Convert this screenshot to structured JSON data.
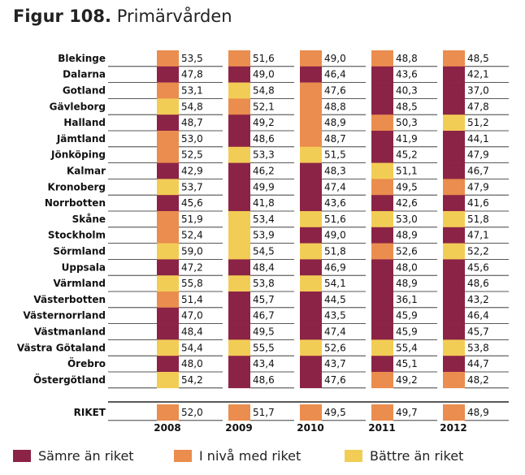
{
  "title": {
    "prefix": "Figur 108.",
    "text": "Primärvården"
  },
  "chart_data": {
    "type": "table",
    "title": "Figur 108. Primärvården",
    "years": [
      "2008",
      "2009",
      "2010",
      "2011",
      "2012"
    ],
    "category_labels": {
      "S": "Sämre än riket",
      "N": "I nivå med riket",
      "B": "Bättre än riket"
    },
    "colors": {
      "S": "#8b2346",
      "N": "#ea8d4e",
      "B": "#f2cd56"
    },
    "rows": [
      {
        "name": "Blekinge",
        "values": [
          "53,5",
          "51,6",
          "49,0",
          "48,8",
          "48,5"
        ],
        "status": [
          "N",
          "N",
          "N",
          "N",
          "N"
        ]
      },
      {
        "name": "Dalarna",
        "values": [
          "47,8",
          "49,0",
          "46,4",
          "43,6",
          "42,1"
        ],
        "status": [
          "S",
          "S",
          "S",
          "S",
          "S"
        ]
      },
      {
        "name": "Gotland",
        "values": [
          "53,1",
          "54,8",
          "47,6",
          "40,3",
          "37,0"
        ],
        "status": [
          "N",
          "B",
          "N",
          "S",
          "S"
        ]
      },
      {
        "name": "Gävleborg",
        "values": [
          "54,8",
          "52,1",
          "48,8",
          "48,5",
          "47,8"
        ],
        "status": [
          "B",
          "N",
          "N",
          "S",
          "S"
        ]
      },
      {
        "name": "Halland",
        "values": [
          "48,7",
          "49,2",
          "48,9",
          "50,3",
          "51,2"
        ],
        "status": [
          "S",
          "S",
          "N",
          "N",
          "B"
        ]
      },
      {
        "name": "Jämtland",
        "values": [
          "53,0",
          "48,6",
          "48,7",
          "41,9",
          "44,1"
        ],
        "status": [
          "N",
          "S",
          "N",
          "S",
          "S"
        ]
      },
      {
        "name": "Jönköping",
        "values": [
          "52,5",
          "53,3",
          "51,5",
          "45,2",
          "47,9"
        ],
        "status": [
          "N",
          "B",
          "B",
          "S",
          "S"
        ]
      },
      {
        "name": "Kalmar",
        "values": [
          "42,9",
          "46,2",
          "48,3",
          "51,1",
          "46,7"
        ],
        "status": [
          "S",
          "S",
          "S",
          "B",
          "S"
        ]
      },
      {
        "name": "Kronoberg",
        "values": [
          "53,7",
          "49,9",
          "47,4",
          "49,5",
          "47,9"
        ],
        "status": [
          "B",
          "S",
          "S",
          "N",
          "N"
        ]
      },
      {
        "name": "Norrbotten",
        "values": [
          "45,6",
          "41,8",
          "43,6",
          "42,6",
          "41,6"
        ],
        "status": [
          "S",
          "S",
          "S",
          "S",
          "S"
        ]
      },
      {
        "name": "Skåne",
        "values": [
          "51,9",
          "53,4",
          "51,6",
          "53,0",
          "51,8"
        ],
        "status": [
          "N",
          "B",
          "B",
          "B",
          "B"
        ]
      },
      {
        "name": "Stockholm",
        "values": [
          "52,4",
          "53,9",
          "49,0",
          "48,9",
          "47,1"
        ],
        "status": [
          "N",
          "B",
          "S",
          "S",
          "S"
        ]
      },
      {
        "name": "Sörmland",
        "values": [
          "59,0",
          "54,5",
          "51,8",
          "52,6",
          "52,2"
        ],
        "status": [
          "B",
          "B",
          "B",
          "N",
          "B"
        ]
      },
      {
        "name": "Uppsala",
        "values": [
          "47,2",
          "48,4",
          "46,9",
          "48,0",
          "45,6"
        ],
        "status": [
          "S",
          "S",
          "S",
          "S",
          "S"
        ]
      },
      {
        "name": "Värmland",
        "values": [
          "55,8",
          "53,8",
          "54,1",
          "48,9",
          "48,6"
        ],
        "status": [
          "B",
          "B",
          "B",
          "S",
          "S"
        ]
      },
      {
        "name": "Västerbotten",
        "values": [
          "51,4",
          "45,7",
          "44,5",
          "36,1",
          "43,2"
        ],
        "status": [
          "N",
          "S",
          "S",
          "S",
          "S"
        ]
      },
      {
        "name": "Västernorrland",
        "values": [
          "47,0",
          "46,7",
          "43,5",
          "45,9",
          "46,4"
        ],
        "status": [
          "S",
          "S",
          "S",
          "S",
          "S"
        ]
      },
      {
        "name": "Västmanland",
        "values": [
          "48,4",
          "49,5",
          "47,4",
          "45,9",
          "45,7"
        ],
        "status": [
          "S",
          "S",
          "S",
          "S",
          "S"
        ]
      },
      {
        "name": "Västra Götaland",
        "values": [
          "54,4",
          "55,5",
          "52,6",
          "55,4",
          "53,8"
        ],
        "status": [
          "B",
          "B",
          "B",
          "B",
          "B"
        ]
      },
      {
        "name": "Örebro",
        "values": [
          "48,0",
          "43,4",
          "43,7",
          "45,1",
          "44,7"
        ],
        "status": [
          "S",
          "S",
          "S",
          "S",
          "S"
        ]
      },
      {
        "name": "Östergötland",
        "values": [
          "54,2",
          "48,6",
          "47,6",
          "49,2",
          "48,2"
        ],
        "status": [
          "B",
          "S",
          "S",
          "N",
          "N"
        ]
      }
    ],
    "national": {
      "name": "RIKET",
      "values": [
        "52,0",
        "51,7",
        "49,5",
        "49,7",
        "48,9"
      ],
      "status": [
        "N",
        "N",
        "N",
        "N",
        "N"
      ]
    }
  },
  "legend": [
    {
      "key": "S",
      "label": "Sämre än riket"
    },
    {
      "key": "N",
      "label": "I nivå med riket"
    },
    {
      "key": "B",
      "label": "Bättre än riket"
    }
  ]
}
